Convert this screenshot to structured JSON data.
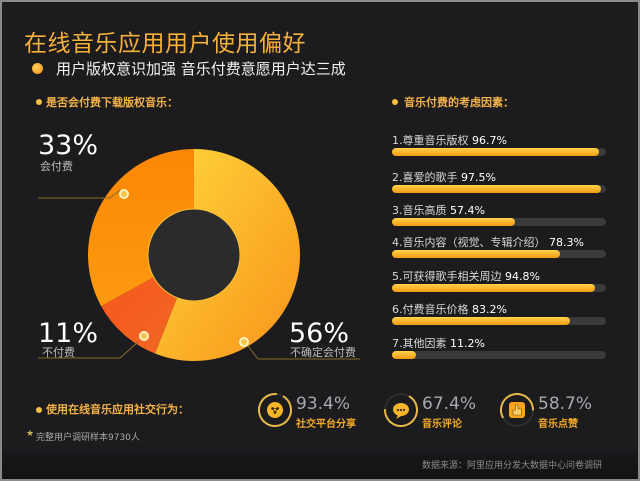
{
  "header": {
    "title": "在线音乐应用用户使用偏好",
    "subtitle": "用户版权意识加强 音乐付费意愿用户达三成"
  },
  "sections": {
    "pay_question": "是否会付费下载版权音乐：",
    "factors_title": "音乐付费的考虑因素：",
    "social_title": "使用在线音乐应用社交行为："
  },
  "pie": {
    "slices": [
      {
        "pct": "56%",
        "label": "不确定会付费",
        "value": 56,
        "color": "#fbb52a"
      },
      {
        "pct": "11%",
        "label": "不付费",
        "value": 11,
        "color": "#f45a22"
      },
      {
        "pct": "33%",
        "label": "会付费",
        "value": 33,
        "color": "#fb8e0c"
      }
    ]
  },
  "factors": [
    {
      "name": "1.尊重音乐版权",
      "value_text": "96.7%",
      "value": 96.7
    },
    {
      "name": "2.喜爱的歌手",
      "value_text": "97.5%",
      "value": 97.5
    },
    {
      "name": "3.音乐高质",
      "value_text": "57.4%",
      "value": 57.4
    },
    {
      "name": "4.音乐内容（视觉、专辑介绍）",
      "value_text": "78.3%",
      "value": 78.3
    },
    {
      "name": "5.可获得歌手相关周边",
      "value_text": "94.8%",
      "value": 94.8
    },
    {
      "name": "6.付费音乐价格",
      "value_text": "83.2%",
      "value": 83.2
    },
    {
      "name": "7.其他因素",
      "value_text": "11.2%",
      "value": 11.2
    }
  ],
  "social": [
    {
      "pct": "93.4%",
      "label": "社交平台分享",
      "value": 93.4,
      "icon": "share-icon"
    },
    {
      "pct": "67.4%",
      "label": "音乐评论",
      "value": 67.4,
      "icon": "comment-icon"
    },
    {
      "pct": "58.7%",
      "label": "音乐点赞",
      "value": 58.7,
      "icon": "thumbs-up-icon"
    }
  ],
  "footer": {
    "note_star": "★",
    "note": "完整用户调研样本9730人",
    "source": "数据来源：阿里应用分发大数据中心问卷调研"
  },
  "chart_data": [
    {
      "type": "pie",
      "title": "是否会付费下载版权音乐：",
      "categories": [
        "不确定会付费",
        "不付费",
        "会付费"
      ],
      "values": [
        56,
        11,
        33
      ],
      "unit": "%",
      "donut": true
    },
    {
      "type": "bar",
      "orientation": "horizontal",
      "title": "音乐付费的考虑因素：",
      "categories": [
        "尊重音乐版权",
        "喜爱的歌手",
        "音乐高质",
        "音乐内容（视觉、专辑介绍）",
        "可获得歌手相关周边",
        "付费音乐价格",
        "其他因素"
      ],
      "values": [
        96.7,
        97.5,
        57.4,
        78.3,
        94.8,
        83.2,
        11.2
      ],
      "unit": "%",
      "xlim": [
        0,
        100
      ]
    },
    {
      "type": "pie",
      "title": "使用在线音乐应用社交行为：",
      "categories": [
        "社交平台分享",
        "音乐评论",
        "音乐点赞"
      ],
      "values": [
        93.4,
        67.4,
        58.7
      ],
      "unit": "%",
      "note": "ring gauges"
    }
  ]
}
